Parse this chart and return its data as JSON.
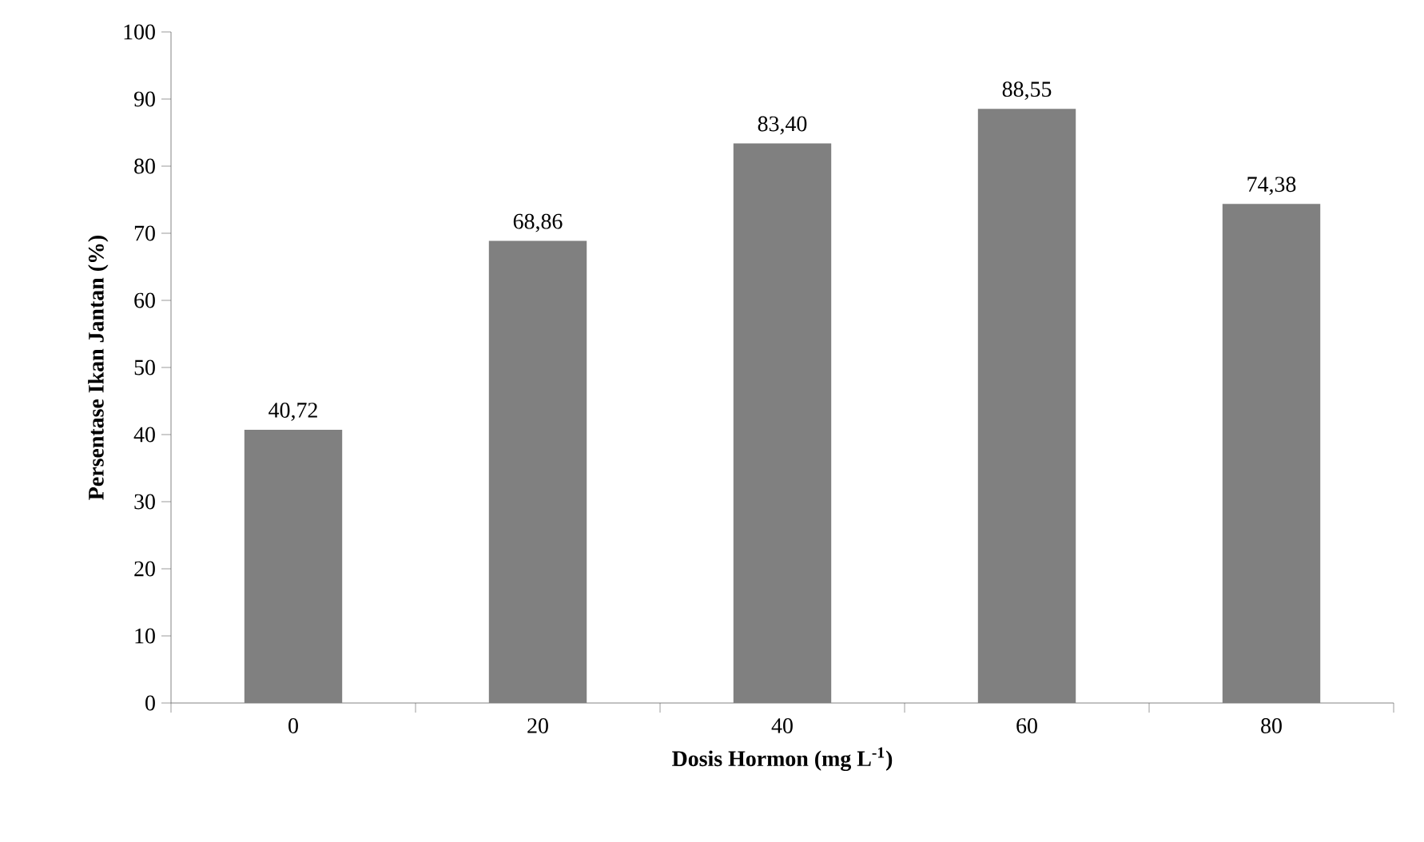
{
  "chart_data": {
    "type": "bar",
    "xlabel": "Dosis Hormon (mg L$^{-1}$)",
    "ylabel": "Persentase Ikan Jantan (%)",
    "categories": [
      "0",
      "20",
      "40",
      "60",
      "80"
    ],
    "values": [
      40.72,
      68.86,
      83.4,
      88.55,
      74.38
    ],
    "value_labels": [
      "40,72",
      "68,86",
      "83,40",
      "88,55",
      "74,38"
    ],
    "color": "#808080",
    "ylim": [
      0,
      100
    ],
    "yticks": [
      0,
      10,
      20,
      30,
      40,
      50,
      60,
      70,
      80,
      90,
      100
    ]
  }
}
